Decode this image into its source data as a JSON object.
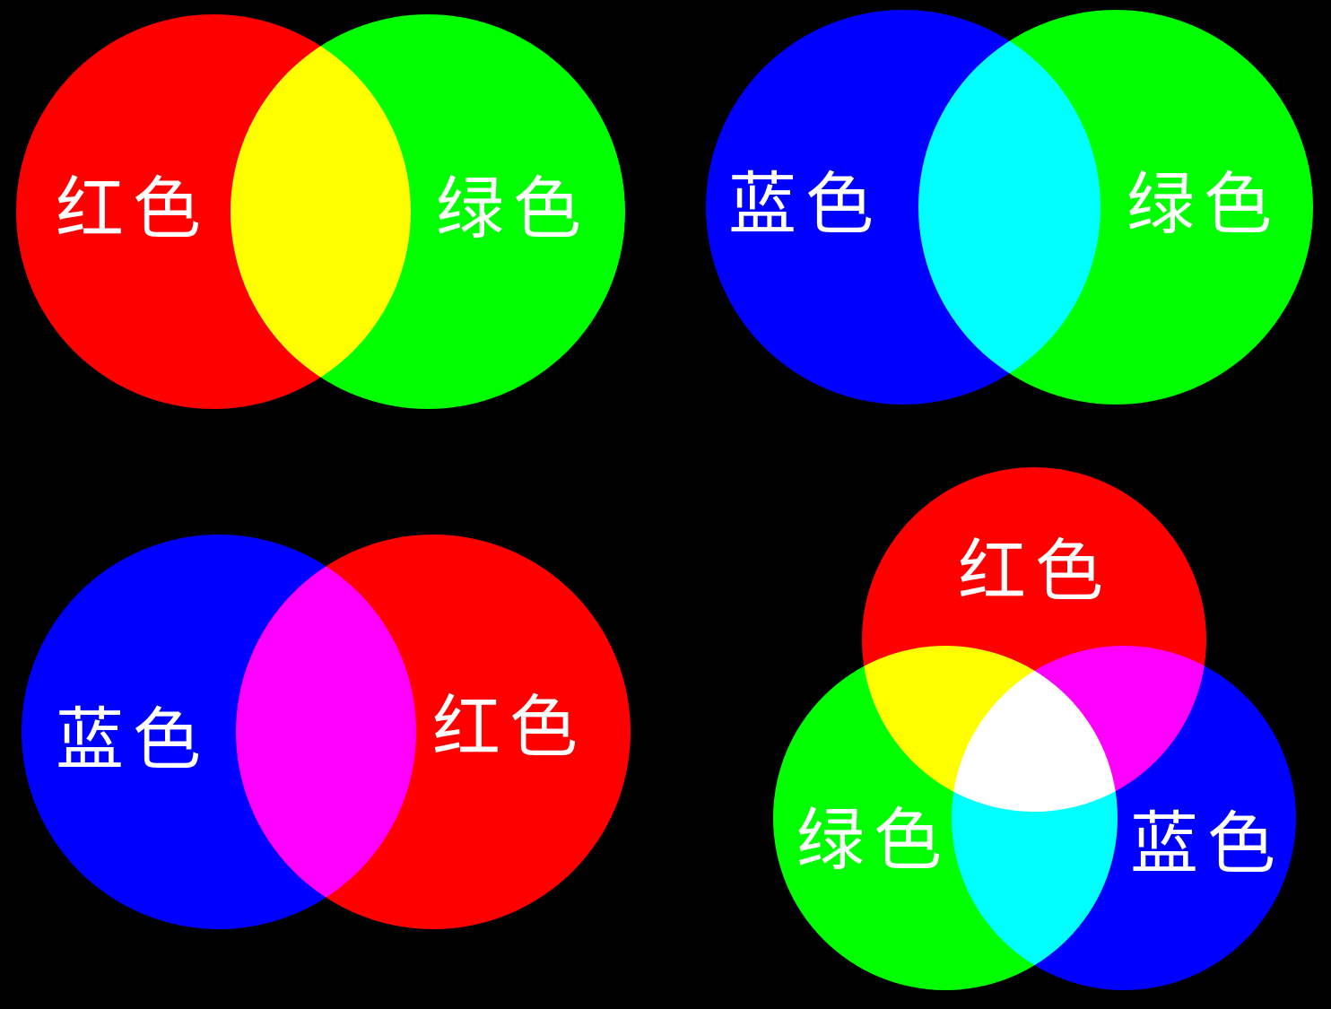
{
  "colors": {
    "background": "#000000",
    "red": "#ff0000",
    "green": "#00ff00",
    "blue": "#0000ff",
    "label": "#ffffff"
  },
  "panels": [
    {
      "id": "red-green",
      "circles": [
        {
          "color": "red",
          "label": "红色"
        },
        {
          "color": "green",
          "label": "绿色"
        }
      ]
    },
    {
      "id": "blue-green",
      "circles": [
        {
          "color": "blue",
          "label": "蓝色"
        },
        {
          "color": "green",
          "label": "绿色"
        }
      ]
    },
    {
      "id": "blue-red",
      "circles": [
        {
          "color": "blue",
          "label": "蓝色"
        },
        {
          "color": "red",
          "label": "红色"
        }
      ]
    },
    {
      "id": "red-green-blue",
      "circles": [
        {
          "color": "red",
          "label": "红色"
        },
        {
          "color": "green",
          "label": "绿色"
        },
        {
          "color": "blue",
          "label": "蓝色"
        }
      ]
    }
  ]
}
